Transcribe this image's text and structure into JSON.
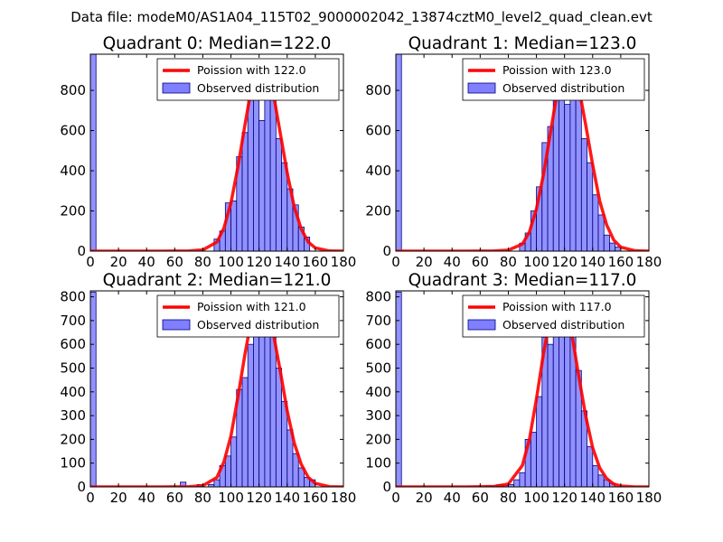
{
  "figure": {
    "suptitle": "Data file: modeM0/AS1A04_115T02_9000002042_13874cztM0_level2_quad_clean.evt"
  },
  "style": {
    "bar_fill": "#7f7fff",
    "bar_edge": "#00007f",
    "poisson_color": "#ff0000",
    "axes_color": "#000000"
  },
  "chart_data": [
    {
      "type": "bar",
      "title": "Quadrant 0: Median=122.0",
      "median": 122.0,
      "xlim": [
        0,
        180
      ],
      "ylim": [
        0,
        980
      ],
      "xticks": [
        0,
        20,
        40,
        60,
        80,
        100,
        120,
        140,
        160,
        180
      ],
      "yticks": [
        0,
        200,
        400,
        600,
        800
      ],
      "legend": {
        "loc": "upper right",
        "line_label": "Poission with 122.0",
        "bar_label": "Observed distribution"
      },
      "histogram": {
        "bin_width": 4,
        "bins": [
          {
            "x": 0,
            "y": 980
          },
          {
            "x": 88,
            "y": 60
          },
          {
            "x": 92,
            "y": 100
          },
          {
            "x": 96,
            "y": 240
          },
          {
            "x": 100,
            "y": 250
          },
          {
            "x": 104,
            "y": 470
          },
          {
            "x": 108,
            "y": 590
          },
          {
            "x": 112,
            "y": 820
          },
          {
            "x": 116,
            "y": 910
          },
          {
            "x": 120,
            "y": 650
          },
          {
            "x": 124,
            "y": 880
          },
          {
            "x": 128,
            "y": 800
          },
          {
            "x": 132,
            "y": 560
          },
          {
            "x": 136,
            "y": 440
          },
          {
            "x": 140,
            "y": 310
          },
          {
            "x": 144,
            "y": 230
          },
          {
            "x": 148,
            "y": 120
          },
          {
            "x": 152,
            "y": 70
          }
        ]
      },
      "poisson_curve": {
        "x": [
          0,
          50,
          70,
          80,
          90,
          95,
          100,
          105,
          110,
          115,
          120,
          122,
          125,
          130,
          135,
          140,
          145,
          150,
          155,
          160,
          170,
          180
        ],
        "y": [
          0,
          0,
          1,
          6,
          45,
          115,
          240,
          420,
          630,
          830,
          930,
          940,
          920,
          790,
          590,
          390,
          220,
          110,
          45,
          16,
          1,
          0
        ]
      }
    },
    {
      "type": "bar",
      "title": "Quadrant 1: Median=123.0",
      "median": 123.0,
      "xlim": [
        0,
        180
      ],
      "ylim": [
        0,
        980
      ],
      "xticks": [
        0,
        20,
        40,
        60,
        80,
        100,
        120,
        140,
        160,
        180
      ],
      "yticks": [
        0,
        200,
        400,
        600,
        800
      ],
      "legend": {
        "loc": "upper right",
        "line_label": "Poission with 123.0",
        "bar_label": "Observed distribution"
      },
      "histogram": {
        "bin_width": 4,
        "bins": [
          {
            "x": 0,
            "y": 980
          },
          {
            "x": 88,
            "y": 40
          },
          {
            "x": 92,
            "y": 90
          },
          {
            "x": 96,
            "y": 200
          },
          {
            "x": 100,
            "y": 320
          },
          {
            "x": 104,
            "y": 540
          },
          {
            "x": 108,
            "y": 620
          },
          {
            "x": 112,
            "y": 760
          },
          {
            "x": 116,
            "y": 900
          },
          {
            "x": 120,
            "y": 730
          },
          {
            "x": 124,
            "y": 810
          },
          {
            "x": 128,
            "y": 760
          },
          {
            "x": 132,
            "y": 560
          },
          {
            "x": 136,
            "y": 440
          },
          {
            "x": 140,
            "y": 280
          },
          {
            "x": 144,
            "y": 180
          },
          {
            "x": 148,
            "y": 80
          },
          {
            "x": 152,
            "y": 40
          },
          {
            "x": 156,
            "y": 20
          }
        ]
      },
      "poisson_curve": {
        "x": [
          0,
          50,
          70,
          80,
          90,
          95,
          100,
          105,
          110,
          115,
          120,
          123,
          125,
          130,
          135,
          140,
          145,
          150,
          155,
          160,
          170,
          180
        ],
        "y": [
          0,
          0,
          1,
          5,
          35,
          95,
          210,
          380,
          590,
          800,
          920,
          945,
          935,
          820,
          630,
          430,
          250,
          130,
          55,
          20,
          2,
          0
        ]
      }
    },
    {
      "type": "bar",
      "title": "Quadrant 2: Median=121.0",
      "median": 121.0,
      "xlim": [
        0,
        180
      ],
      "ylim": [
        0,
        825
      ],
      "xticks": [
        0,
        20,
        40,
        60,
        80,
        100,
        120,
        140,
        160,
        180
      ],
      "yticks": [
        0,
        100,
        200,
        300,
        400,
        500,
        600,
        700,
        800
      ],
      "legend": {
        "loc": "upper right",
        "line_label": "Poission with 121.0",
        "bar_label": "Observed distribution"
      },
      "histogram": {
        "bin_width": 4,
        "bins": [
          {
            "x": 0,
            "y": 820
          },
          {
            "x": 64,
            "y": 20
          },
          {
            "x": 76,
            "y": 10
          },
          {
            "x": 84,
            "y": 10
          },
          {
            "x": 88,
            "y": 30
          },
          {
            "x": 92,
            "y": 90
          },
          {
            "x": 96,
            "y": 130
          },
          {
            "x": 100,
            "y": 210
          },
          {
            "x": 104,
            "y": 410
          },
          {
            "x": 108,
            "y": 460
          },
          {
            "x": 112,
            "y": 600
          },
          {
            "x": 116,
            "y": 780
          },
          {
            "x": 120,
            "y": 650
          },
          {
            "x": 124,
            "y": 750
          },
          {
            "x": 128,
            "y": 680
          },
          {
            "x": 132,
            "y": 500
          },
          {
            "x": 136,
            "y": 360
          },
          {
            "x": 140,
            "y": 240
          },
          {
            "x": 144,
            "y": 140
          },
          {
            "x": 148,
            "y": 80
          },
          {
            "x": 152,
            "y": 40
          },
          {
            "x": 156,
            "y": 30
          }
        ]
      },
      "poisson_curve": {
        "x": [
          0,
          50,
          70,
          80,
          90,
          95,
          100,
          105,
          110,
          115,
          120,
          121,
          125,
          130,
          135,
          140,
          145,
          150,
          155,
          160,
          170,
          180
        ],
        "y": [
          0,
          0,
          1,
          5,
          40,
          105,
          215,
          380,
          560,
          720,
          785,
          790,
          760,
          650,
          490,
          320,
          185,
          95,
          40,
          15,
          1,
          0
        ]
      }
    },
    {
      "type": "bar",
      "title": "Quadrant 3: Median=117.0",
      "median": 117.0,
      "xlim": [
        0,
        180
      ],
      "ylim": [
        0,
        825
      ],
      "xticks": [
        0,
        20,
        40,
        60,
        80,
        100,
        120,
        140,
        160,
        180
      ],
      "yticks": [
        0,
        100,
        200,
        300,
        400,
        500,
        600,
        700,
        800
      ],
      "legend": {
        "loc": "upper right",
        "line_label": "Poission with 117.0",
        "bar_label": "Observed distribution"
      },
      "histogram": {
        "bin_width": 4,
        "bins": [
          {
            "x": 0,
            "y": 820
          },
          {
            "x": 64,
            "y": 5
          },
          {
            "x": 68,
            "y": 5
          },
          {
            "x": 72,
            "y": 10
          },
          {
            "x": 76,
            "y": 5
          },
          {
            "x": 80,
            "y": 10
          },
          {
            "x": 84,
            "y": 30
          },
          {
            "x": 88,
            "y": 60
          },
          {
            "x": 92,
            "y": 200
          },
          {
            "x": 96,
            "y": 230
          },
          {
            "x": 100,
            "y": 380
          },
          {
            "x": 104,
            "y": 630
          },
          {
            "x": 108,
            "y": 600
          },
          {
            "x": 112,
            "y": 750
          },
          {
            "x": 116,
            "y": 770
          },
          {
            "x": 120,
            "y": 640
          },
          {
            "x": 124,
            "y": 720
          },
          {
            "x": 128,
            "y": 490
          },
          {
            "x": 132,
            "y": 320
          },
          {
            "x": 136,
            "y": 170
          },
          {
            "x": 140,
            "y": 90
          },
          {
            "x": 144,
            "y": 50
          },
          {
            "x": 148,
            "y": 30
          },
          {
            "x": 152,
            "y": 15
          }
        ]
      },
      "poisson_curve": {
        "x": [
          0,
          50,
          70,
          80,
          90,
          95,
          100,
          105,
          110,
          115,
          117,
          120,
          125,
          130,
          135,
          140,
          145,
          150,
          155,
          160,
          170,
          180
        ],
        "y": [
          0,
          0,
          2,
          12,
          90,
          200,
          370,
          560,
          720,
          790,
          795,
          770,
          650,
          470,
          300,
          165,
          80,
          35,
          12,
          4,
          0,
          0
        ]
      }
    }
  ]
}
